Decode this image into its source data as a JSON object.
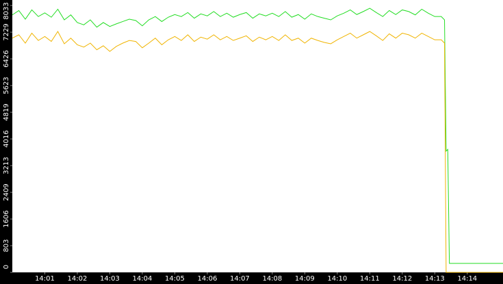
{
  "chart_data": {
    "type": "line",
    "x": [
      0,
      0.2,
      0.4,
      0.6,
      0.8,
      1.0,
      1.2,
      1.4,
      1.6,
      1.8,
      2.0,
      2.2,
      2.4,
      2.6,
      2.8,
      3.0,
      3.2,
      3.4,
      3.6,
      3.8,
      4.0,
      4.2,
      4.4,
      4.6,
      4.8,
      5.0,
      5.2,
      5.4,
      5.6,
      5.8,
      6.0,
      6.2,
      6.4,
      6.6,
      6.8,
      7.0,
      7.2,
      7.4,
      7.6,
      7.8,
      8.0,
      8.2,
      8.4,
      8.6,
      8.8,
      9.0,
      9.2,
      9.4,
      9.6,
      9.8,
      10.0,
      10.2,
      10.4,
      10.6,
      10.8,
      11.0,
      11.2,
      11.4,
      11.6,
      11.8,
      12.0,
      12.2,
      12.4,
      12.6,
      12.8,
      13.0,
      13.2,
      13.3,
      13.35,
      13.4,
      13.45,
      15.1
    ],
    "series": [
      {
        "color": "#22dd22",
        "values": [
          7750,
          7880,
          7620,
          7900,
          7700,
          7810,
          7680,
          7920,
          7600,
          7750,
          7520,
          7450,
          7600,
          7380,
          7520,
          7400,
          7480,
          7550,
          7620,
          7580,
          7420,
          7600,
          7700,
          7550,
          7680,
          7760,
          7700,
          7820,
          7650,
          7780,
          7720,
          7850,
          7700,
          7800,
          7680,
          7760,
          7820,
          7650,
          7780,
          7720,
          7800,
          7700,
          7850,
          7680,
          7760,
          7620,
          7780,
          7700,
          7650,
          7600,
          7720,
          7800,
          7900,
          7760,
          7850,
          7950,
          7820,
          7700,
          7880,
          7760,
          7900,
          7850,
          7750,
          7920,
          7800,
          7700,
          7700,
          7600,
          3650,
          3700,
          270,
          270
        ]
      },
      {
        "color": "#f0b400",
        "values": [
          7050,
          7150,
          6900,
          7200,
          6980,
          7100,
          6950,
          7250,
          6880,
          7050,
          6850,
          6780,
          6900,
          6700,
          6820,
          6650,
          6800,
          6900,
          6980,
          6950,
          6760,
          6900,
          7050,
          6850,
          7000,
          7100,
          6980,
          7150,
          6950,
          7080,
          7020,
          7150,
          7000,
          7100,
          6980,
          7050,
          7120,
          6950,
          7080,
          7000,
          7100,
          6980,
          7150,
          6980,
          7050,
          6900,
          7050,
          6980,
          6920,
          6880,
          7000,
          7100,
          7200,
          7050,
          7150,
          7250,
          7120,
          6980,
          7180,
          7050,
          7200,
          7150,
          7050,
          7200,
          7100,
          7000,
          7000,
          6900,
          0,
          0,
          0,
          0
        ]
      }
    ],
    "xlim": [
      0,
      15.1
    ],
    "xticks": [
      {
        "value": 1,
        "label": "14:01"
      },
      {
        "value": 2,
        "label": "14:02"
      },
      {
        "value": 3,
        "label": "14:03"
      },
      {
        "value": 4,
        "label": "14:04"
      },
      {
        "value": 5,
        "label": "14:05"
      },
      {
        "value": 6,
        "label": "14:06"
      },
      {
        "value": 7,
        "label": "14:07"
      },
      {
        "value": 8,
        "label": "14:08"
      },
      {
        "value": 9,
        "label": "14:09"
      },
      {
        "value": 10,
        "label": "14:10"
      },
      {
        "value": 11,
        "label": "14:11"
      },
      {
        "value": 12,
        "label": "14:12"
      },
      {
        "value": 13,
        "label": "14:13"
      },
      {
        "value": 14,
        "label": "14:14"
      }
    ],
    "ylim": [
      0,
      8033
    ],
    "yticks": [
      0,
      803,
      1606,
      2409,
      3213,
      4016,
      4819,
      5623,
      6426,
      7229,
      8033
    ]
  }
}
